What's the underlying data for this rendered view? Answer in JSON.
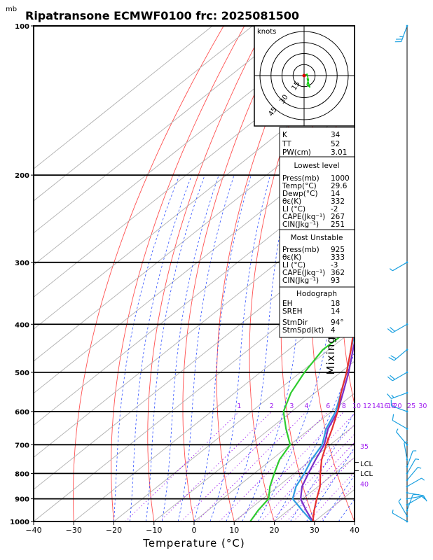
{
  "title": "Ripatransone ECMWF0100  frc: 2025081500",
  "y_unit": "mb",
  "xlabel": "Temperature (°C)",
  "right_label": "Mixing Ratio  (g/kg)",
  "hodograph_unit": "knots",
  "hodograph_rings": [
    "15",
    "30",
    "45"
  ],
  "lcl_labels": [
    "LCL",
    "LCL"
  ],
  "indices": {
    "general": [
      {
        "label": "K",
        "value": "34"
      },
      {
        "label": "TT",
        "value": "52"
      },
      {
        "label": "PW(cm)",
        "value": "3.01"
      }
    ],
    "lowest_level": {
      "header": "Lowest level",
      "rows": [
        {
          "label": "Press(mb)",
          "value": "1000"
        },
        {
          "label": "Temp(°C)",
          "value": "29.6"
        },
        {
          "label": "Dewp(°C)",
          "value": "14"
        },
        {
          "label": "θε(K)",
          "value": "332"
        },
        {
          "label": "LI (°C)",
          "value": "-2"
        },
        {
          "label": "CAPE(Jkg⁻¹)",
          "value": "267"
        },
        {
          "label": "CIN(Jkg⁻¹)",
          "value": "251"
        }
      ]
    },
    "most_unstable": {
      "header": "Most Unstable",
      "rows": [
        {
          "label": "Press(mb)",
          "value": "925"
        },
        {
          "label": "θε(K)",
          "value": "333"
        },
        {
          "label": "LI (°C)",
          "value": "-3"
        },
        {
          "label": "CAPE(Jkg⁻¹)",
          "value": "362"
        },
        {
          "label": "CIN(Jkg⁻¹)",
          "value": "93"
        }
      ]
    },
    "hodograph": {
      "header": "Hodograph",
      "rows": [
        {
          "label": "EH",
          "value": "18"
        },
        {
          "label": "SREH",
          "value": "14"
        }
      ],
      "storm": [
        {
          "label": "StmDir",
          "value": "94°"
        },
        {
          "label": "StmSpd(kt)",
          "value": "4"
        }
      ]
    }
  },
  "chart_data": {
    "type": "line",
    "diagram": "skew-T log-P",
    "xlim": [
      -40,
      40
    ],
    "ylim_hPa": [
      1000,
      100
    ],
    "y_log": true,
    "x_ticks": [
      "−40",
      "−30",
      "−20",
      "−10",
      "0",
      "10",
      "20",
      "30",
      "40"
    ],
    "x_tick_values": [
      -40,
      -30,
      -20,
      -10,
      0,
      10,
      20,
      30,
      40
    ],
    "y_ticks": [
      "100",
      "200",
      "300",
      "400",
      "500",
      "600",
      "700",
      "800",
      "900",
      "1000"
    ],
    "y_tick_values": [
      100,
      200,
      300,
      400,
      500,
      600,
      700,
      800,
      900,
      1000
    ],
    "mixing_ratio_labels": [
      "1",
      "2",
      "3",
      "4",
      "6",
      "8",
      "10",
      "12",
      "14",
      "16",
      "18",
      "20",
      "25",
      "30"
    ],
    "mixing_ratio_values": [
      1,
      2,
      3,
      4,
      6,
      8,
      10,
      12,
      14,
      16,
      18,
      20,
      25,
      30
    ],
    "temperature": {
      "p": [
        1000,
        950,
        900,
        850,
        800,
        750,
        700,
        650,
        600,
        550,
        500,
        450,
        400,
        350,
        300,
        270,
        250,
        200,
        150,
        100
      ],
      "t": [
        29.6,
        26.5,
        23.5,
        20.5,
        16.5,
        12.5,
        9.0,
        5.5,
        1.5,
        -3.5,
        -8.5,
        -14.5,
        -21.5,
        -29.5,
        -38.5,
        -45.0,
        -50.5,
        -60.0,
        -68.0,
        -72.0
      ]
    },
    "dewpoint": {
      "p": [
        1000,
        950,
        900,
        850,
        800,
        750,
        700,
        650,
        600,
        550,
        500,
        450,
        400,
        350,
        300,
        270,
        250,
        200,
        150,
        100
      ],
      "td": [
        14.0,
        12.5,
        11.5,
        8.0,
        5.0,
        2.0,
        0.0,
        -6.0,
        -12.0,
        -16.0,
        -19.0,
        -21.5,
        -21.0,
        -30.0,
        -42.0,
        -52.0,
        -62.0,
        -72.0,
        -82.0,
        -90.0
      ]
    },
    "parcel": {
      "p": [
        1000,
        950,
        900,
        850,
        800,
        750,
        700,
        650,
        600,
        550,
        500,
        450,
        400,
        350,
        300,
        250,
        200,
        150,
        130
      ],
      "t": [
        29.6,
        24.5,
        19.5,
        16.0,
        13.5,
        11.0,
        8.5,
        4.5,
        1.5,
        -3.0,
        -8.0,
        -14.0,
        -20.5,
        -28.0,
        -37.5,
        -49.0,
        -62.0,
        -78.0,
        -85.0
      ]
    },
    "wet_bulb": {
      "p": [
        1000,
        950,
        900,
        850,
        800,
        750,
        700,
        650,
        600,
        550,
        500,
        450,
        400,
        350,
        300,
        250,
        200,
        150,
        130
      ],
      "t": [
        29.4,
        23.5,
        17.5,
        14.5,
        12.5,
        10.0,
        8.0,
        4.0,
        1.0,
        -3.5,
        -8.5,
        -14.5,
        -21.0,
        -29.0,
        -38.5,
        -50.0,
        -63.0,
        -79.0,
        -86.0
      ]
    },
    "lcl_p": [
      760,
      790
    ],
    "hodograph_trace": {
      "u": [
        0,
        2,
        3,
        2,
        4,
        3,
        2
      ],
      "v": [
        0,
        1,
        -3,
        -6,
        -8,
        -5,
        -2
      ]
    },
    "wind_barbs": {
      "p": [
        1000,
        975,
        950,
        925,
        900,
        875,
        850,
        825,
        800,
        775,
        750,
        700,
        650,
        600,
        550,
        500,
        450,
        400,
        300,
        100
      ],
      "dir": [
        300,
        330,
        20,
        60,
        80,
        100,
        60,
        40,
        30,
        20,
        350,
        320,
        300,
        290,
        250,
        240,
        230,
        240,
        240,
        200
      ],
      "spd": [
        5,
        8,
        10,
        12,
        10,
        8,
        6,
        5,
        5,
        5,
        5,
        8,
        10,
        12,
        15,
        20,
        20,
        20,
        5,
        25
      ]
    }
  }
}
